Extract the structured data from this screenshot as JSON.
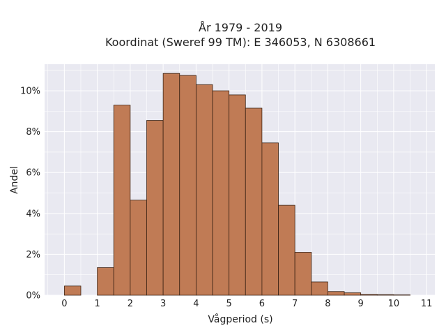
{
  "chart_data": {
    "type": "bar",
    "title_line1": "År 1979 - 2019",
    "title_line2": "Koordinat (Sweref 99 TM): E 346053, N 6308661",
    "xlabel": "Vågperiod (s)",
    "ylabel": "Andel",
    "bin_width": 0.5,
    "bin_starts": [
      0,
      0.5,
      1,
      1.5,
      2,
      2.5,
      3,
      3.5,
      4,
      4.5,
      5,
      5.5,
      6,
      6.5,
      7,
      7.5,
      8,
      8.5,
      9,
      9.5,
      10,
      10.5
    ],
    "values": [
      0.45,
      0,
      1.35,
      9.3,
      4.65,
      8.55,
      10.85,
      10.75,
      10.3,
      10.0,
      9.8,
      9.15,
      7.45,
      4.4,
      2.1,
      0.65,
      0.18,
      0.12,
      0.04,
      0.03,
      0.02,
      0
    ],
    "xlim": [
      -0.6,
      11.25
    ],
    "ylim": [
      0,
      11.3
    ],
    "x_ticks": [
      0,
      1,
      2,
      3,
      4,
      5,
      6,
      7,
      8,
      9,
      10,
      11
    ],
    "x_tick_labels": [
      "0",
      "1",
      "2",
      "3",
      "4",
      "5",
      "6",
      "7",
      "8",
      "9",
      "10",
      "11"
    ],
    "y_ticks": [
      0,
      2,
      4,
      6,
      8,
      10
    ],
    "y_tick_labels": [
      "0%",
      "2%",
      "4%",
      "6%",
      "8%",
      "10%"
    ],
    "bar_color": "#c07b55",
    "bar_edge_color": "#3a2214",
    "plot_bg": "#e9e9f1",
    "grid": true,
    "grid_color": "#ffffff"
  }
}
